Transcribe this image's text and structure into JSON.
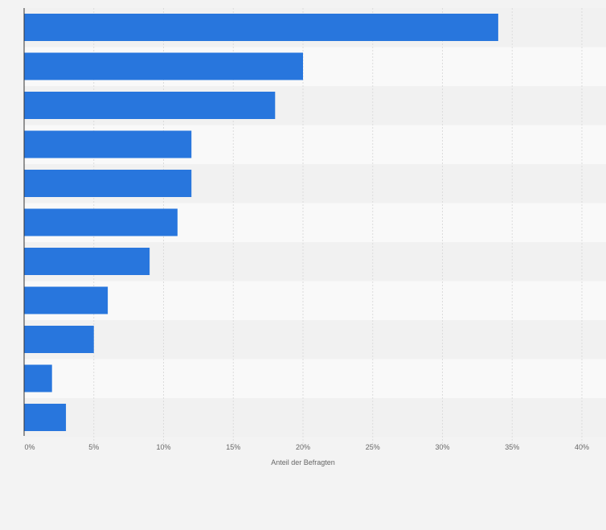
{
  "chart_data": {
    "type": "bar",
    "orientation": "horizontal",
    "title": "",
    "xlabel": "Anteil der Befragten",
    "ylabel": "",
    "xlim": [
      0,
      40
    ],
    "ticks": [
      0,
      5,
      10,
      15,
      20,
      25,
      30,
      35,
      40
    ],
    "tick_labels": [
      "0%",
      "5%",
      "10%",
      "15%",
      "20%",
      "25%",
      "30%",
      "35%",
      "40%"
    ],
    "values": [
      34,
      20,
      18,
      12,
      12,
      11,
      9,
      6,
      5,
      2,
      3
    ],
    "bar_color": "#2876dd",
    "row_colors": [
      "#f1f1f1",
      "#f9f9f9"
    ],
    "grid": true
  }
}
